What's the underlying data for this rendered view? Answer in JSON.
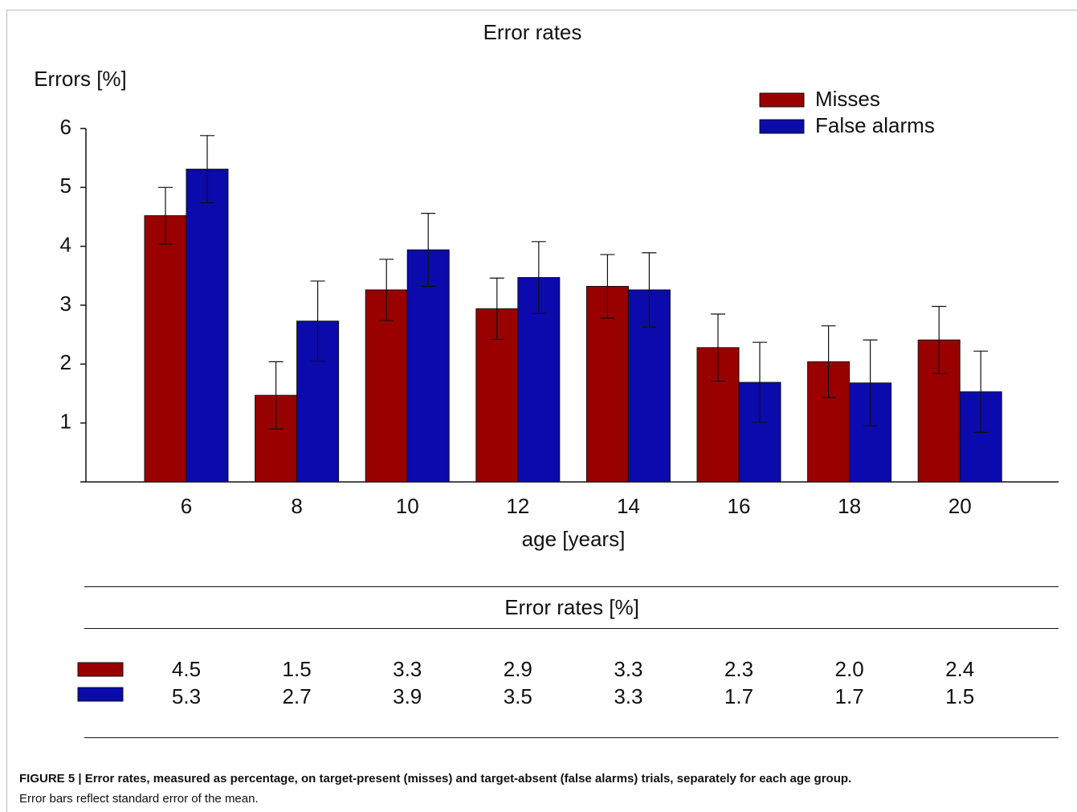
{
  "chart_data": {
    "type": "bar",
    "title": "Error rates",
    "y_label": "Errors [%]",
    "x_label": "age [years]",
    "categories": [
      "6",
      "8",
      "10",
      "12",
      "14",
      "16",
      "18",
      "20"
    ],
    "series": [
      {
        "name": "Misses",
        "color": "#990000",
        "values": [
          4.52,
          1.47,
          3.26,
          2.94,
          3.32,
          2.28,
          2.04,
          2.41
        ],
        "value_labels": [
          "4.5",
          "1.5",
          "3.3",
          "2.9",
          "3.3",
          "2.3",
          "2.0",
          "2.4"
        ],
        "errors": [
          0.48,
          0.57,
          0.52,
          0.52,
          0.54,
          0.57,
          0.61,
          0.57
        ]
      },
      {
        "name": "False alarms",
        "color": "#0a0aad",
        "values": [
          5.31,
          2.73,
          3.94,
          3.47,
          3.26,
          1.69,
          1.68,
          1.53
        ],
        "value_labels": [
          "5.3",
          "2.7",
          "3.9",
          "3.5",
          "3.3",
          "1.7",
          "1.7",
          "1.5"
        ],
        "errors": [
          0.57,
          0.68,
          0.62,
          0.61,
          0.63,
          0.68,
          0.73,
          0.69
        ]
      }
    ],
    "ylim": [
      0,
      6
    ],
    "yticks": [
      1,
      2,
      3,
      4,
      5,
      6
    ],
    "legend": "top-right",
    "table_title": "Error rates [%]"
  },
  "caption": {
    "heading": "FIGURE 5 | Error rates, measured as percentage, on target-present (misses) and target-absent (false alarms) trials, separately for each age group.",
    "text": "Error bars reflect standard error of the mean."
  }
}
